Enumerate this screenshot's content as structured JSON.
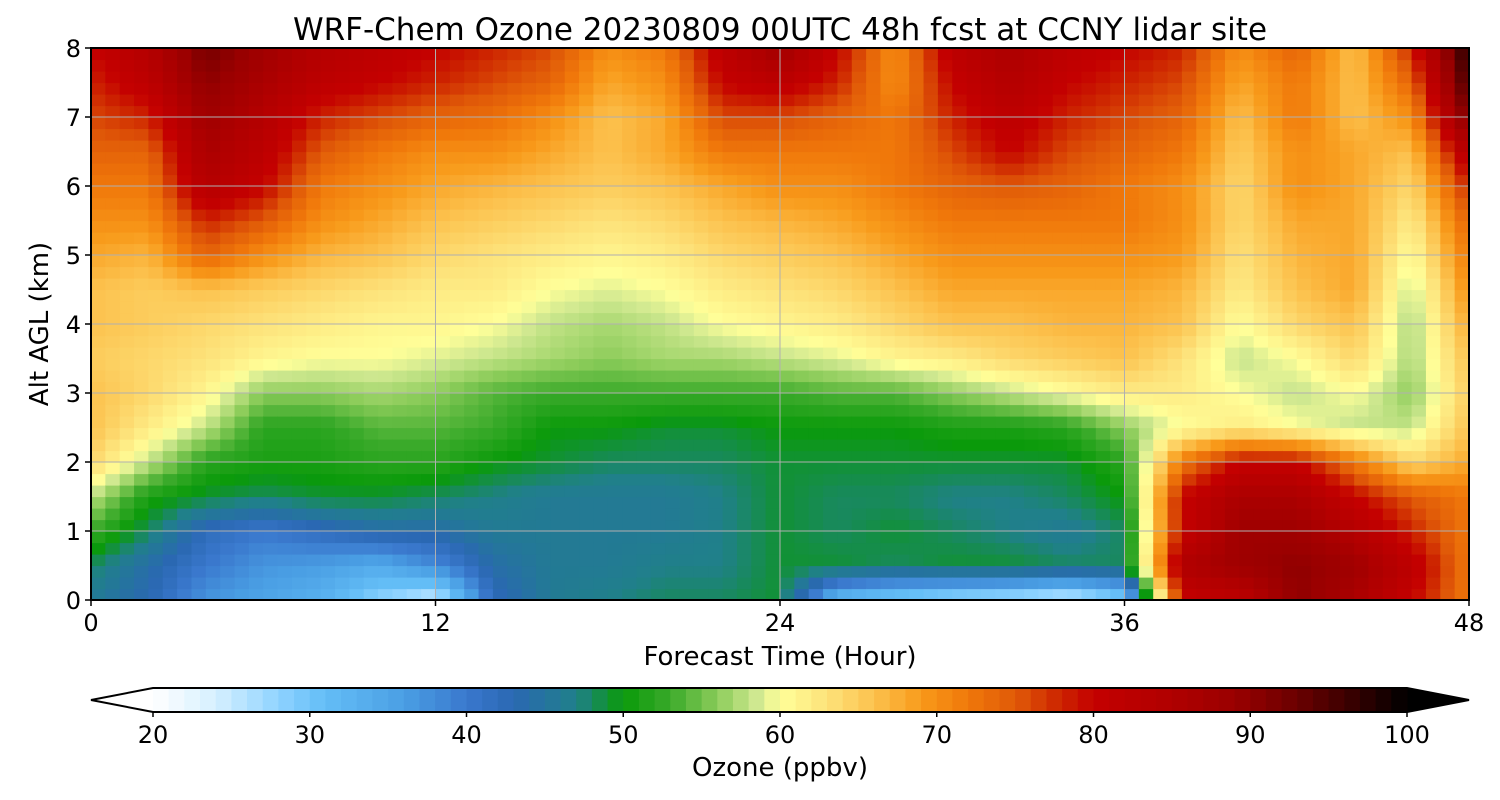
{
  "chart_data": {
    "type": "heatmap",
    "title": "WRF-Chem Ozone  20230809 00UTC 48h fcst at CCNY lidar site",
    "xlabel": "Forecast Time (Hour)",
    "ylabel": "Alt AGL (km)",
    "xlim": [
      0,
      48
    ],
    "ylim": [
      0,
      8
    ],
    "x_ticks": [
      "0",
      "12",
      "24",
      "36",
      "48"
    ],
    "y_ticks": [
      "0",
      "1",
      "2",
      "3",
      "4",
      "5",
      "6",
      "7",
      "8"
    ],
    "grid": true,
    "colorbar": {
      "label": "Ozone  (ppbv)",
      "range": [
        20,
        100
      ],
      "ticks": [
        "20",
        "30",
        "40",
        "50",
        "60",
        "70",
        "80",
        "90",
        "100"
      ],
      "extend": "both",
      "placement": "bottom",
      "stops": [
        [
          20,
          "#ffffff"
        ],
        [
          24,
          "#d6f0ff"
        ],
        [
          28,
          "#8fd3ff"
        ],
        [
          31,
          "#63bdf6"
        ],
        [
          36,
          "#4a9fe4"
        ],
        [
          40,
          "#3a78cd"
        ],
        [
          43,
          "#2a68b2"
        ],
        [
          47,
          "#20808a"
        ],
        [
          50,
          "#0a9a0a"
        ],
        [
          53,
          "#3aaa2a"
        ],
        [
          56,
          "#8ccc5a"
        ],
        [
          58.5,
          "#cfe890"
        ],
        [
          60,
          "#ffff99"
        ],
        [
          63,
          "#fde27a"
        ],
        [
          66,
          "#fcc24e"
        ],
        [
          69,
          "#f89a1a"
        ],
        [
          72,
          "#f0780a"
        ],
        [
          75,
          "#e05a08"
        ],
        [
          78,
          "#cc2200"
        ],
        [
          80,
          "#c40000"
        ],
        [
          85,
          "#b00000"
        ],
        [
          89,
          "#9a0000"
        ],
        [
          93,
          "#6a0000"
        ],
        [
          97,
          "#300000"
        ],
        [
          100,
          "#000000"
        ]
      ]
    },
    "x": [
      0,
      2,
      4,
      6,
      8,
      10,
      12,
      14,
      16,
      18,
      20,
      22,
      24,
      26,
      28,
      30,
      32,
      34,
      36,
      38,
      40,
      42,
      44,
      46,
      48
    ],
    "y": [
      0,
      0.5,
      1,
      1.5,
      2,
      2.5,
      3,
      3.5,
      4,
      4.5,
      5,
      5.5,
      6,
      6.5,
      7,
      7.5,
      8
    ],
    "z": [
      [
        46,
        43,
        37,
        35,
        33,
        28,
        24,
        42,
        46,
        47,
        48,
        48,
        49,
        31,
        28,
        26,
        25,
        23,
        28,
        80,
        82,
        90,
        86,
        80,
        72
      ],
      [
        48,
        44,
        40,
        37,
        36,
        34,
        38,
        44,
        46,
        46,
        47,
        47,
        49,
        49,
        48,
        49,
        49,
        48,
        48,
        85,
        88,
        90,
        88,
        82,
        72
      ],
      [
        53,
        48,
        42,
        40,
        42,
        44,
        44,
        46,
        46,
        46,
        46,
        47,
        49,
        48,
        49,
        48,
        47,
        46,
        48,
        80,
        88,
        88,
        84,
        78,
        72
      ],
      [
        58,
        51,
        49,
        48,
        49,
        49,
        48,
        47,
        46,
        46,
        46,
        47,
        49,
        48,
        48,
        47,
        47,
        48,
        50,
        80,
        86,
        86,
        80,
        75,
        72
      ],
      [
        64,
        58,
        52,
        51,
        51,
        52,
        52,
        50,
        49,
        48,
        48,
        48,
        49,
        49,
        49,
        49,
        49,
        49,
        52,
        72,
        80,
        80,
        72,
        64,
        68
      ],
      [
        66,
        62,
        58,
        52,
        52,
        54,
        54,
        53,
        50,
        50,
        49,
        49,
        50,
        50,
        50,
        51,
        51,
        52,
        56,
        60,
        62,
        60,
        58,
        58,
        66
      ],
      [
        66,
        64,
        61,
        56,
        56,
        57,
        56,
        54,
        53,
        53,
        53,
        53,
        53,
        54,
        54,
        56,
        58,
        60,
        62,
        62,
        60,
        58,
        60,
        56,
        65
      ],
      [
        65,
        64,
        63,
        61,
        60,
        60,
        59,
        58,
        57,
        56,
        57,
        57,
        58,
        59,
        61,
        62,
        64,
        65,
        66,
        63,
        58,
        60,
        64,
        57,
        66
      ],
      [
        66,
        65,
        64,
        63,
        62,
        61,
        61,
        60,
        58,
        57,
        58,
        60,
        61,
        62,
        64,
        66,
        66,
        67,
        67,
        66,
        60,
        64,
        66,
        57,
        68
      ],
      [
        66,
        65,
        66,
        65,
        64,
        63,
        62,
        62,
        60,
        59,
        60,
        62,
        63,
        64,
        66,
        68,
        68,
        68,
        68,
        67,
        62,
        66,
        68,
        58,
        70
      ],
      [
        68,
        67,
        74,
        70,
        67,
        66,
        64,
        63,
        62,
        61,
        62,
        64,
        65,
        66,
        68,
        70,
        70,
        70,
        70,
        69,
        63,
        67,
        68,
        60,
        72
      ],
      [
        70,
        70,
        78,
        75,
        70,
        68,
        66,
        65,
        64,
        63,
        64,
        66,
        67,
        68,
        70,
        72,
        72,
        72,
        72,
        70,
        64,
        68,
        68,
        62,
        74
      ],
      [
        72,
        72,
        84,
        80,
        72,
        70,
        68,
        67,
        66,
        65,
        66,
        68,
        70,
        70,
        72,
        74,
        75,
        74,
        72,
        70,
        64,
        70,
        68,
        64,
        78
      ],
      [
        74,
        74,
        86,
        82,
        75,
        72,
        70,
        70,
        68,
        66,
        68,
        72,
        72,
        72,
        72,
        76,
        80,
        76,
        74,
        72,
        65,
        70,
        68,
        66,
        84
      ],
      [
        76,
        78,
        88,
        84,
        78,
        76,
        74,
        73,
        70,
        66,
        68,
        76,
        76,
        74,
        72,
        78,
        82,
        78,
        76,
        74,
        66,
        72,
        66,
        70,
        92
      ],
      [
        78,
        82,
        90,
        86,
        82,
        80,
        78,
        76,
        74,
        68,
        70,
        80,
        82,
        78,
        70,
        80,
        84,
        80,
        78,
        76,
        68,
        72,
        66,
        74,
        96
      ],
      [
        80,
        84,
        92,
        88,
        84,
        82,
        80,
        78,
        76,
        70,
        72,
        82,
        88,
        80,
        70,
        82,
        86,
        82,
        80,
        78,
        70,
        74,
        66,
        78,
        98
      ]
    ]
  }
}
